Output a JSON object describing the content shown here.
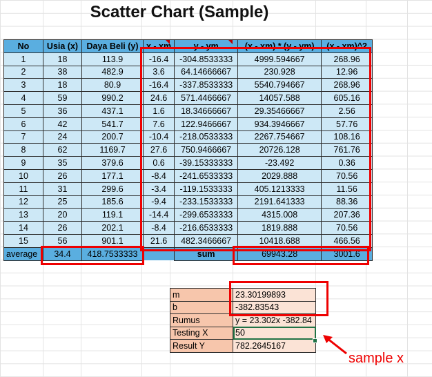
{
  "title": "Scatter Chart (Sample)",
  "headers": [
    "No",
    "Usia (x)",
    "Daya Beli (y)",
    "x - xm",
    "y - ym",
    "(x - xm) * (y - ym)",
    "(x - xm)^2"
  ],
  "rows": [
    [
      "1",
      "18",
      "113.9",
      "-16.4",
      "-304.8533333",
      "4999.594667",
      "268.96"
    ],
    [
      "2",
      "38",
      "482.9",
      "3.6",
      "64.14666667",
      "230.928",
      "12.96"
    ],
    [
      "3",
      "18",
      "80.9",
      "-16.4",
      "-337.8533333",
      "5540.794667",
      "268.96"
    ],
    [
      "4",
      "59",
      "990.2",
      "24.6",
      "571.4466667",
      "14057.588",
      "605.16"
    ],
    [
      "5",
      "36",
      "437.1",
      "1.6",
      "18.34666667",
      "29.35466667",
      "2.56"
    ],
    [
      "6",
      "42",
      "541.7",
      "7.6",
      "122.9466667",
      "934.3946667",
      "57.76"
    ],
    [
      "7",
      "24",
      "200.7",
      "-10.4",
      "-218.0533333",
      "2267.754667",
      "108.16"
    ],
    [
      "8",
      "62",
      "1169.7",
      "27.6",
      "750.9466667",
      "20726.128",
      "761.76"
    ],
    [
      "9",
      "35",
      "379.6",
      "0.6",
      "-39.15333333",
      "-23.492",
      "0.36"
    ],
    [
      "10",
      "26",
      "177.1",
      "-8.4",
      "-241.6533333",
      "2029.888",
      "70.56"
    ],
    [
      "11",
      "31",
      "299.6",
      "-3.4",
      "-119.1533333",
      "405.1213333",
      "11.56"
    ],
    [
      "12",
      "25",
      "185.6",
      "-9.4",
      "-233.1533333",
      "2191.641333",
      "88.36"
    ],
    [
      "13",
      "20",
      "119.1",
      "-14.4",
      "-299.6533333",
      "4315.008",
      "207.36"
    ],
    [
      "14",
      "26",
      "202.1",
      "-8.4",
      "-216.6533333",
      "1819.888",
      "70.56"
    ],
    [
      "15",
      "56",
      "901.1",
      "21.6",
      "482.3466667",
      "10418.688",
      "466.56"
    ]
  ],
  "average": {
    "label": "average",
    "x": "34.4",
    "y": "418.7533333"
  },
  "sum": {
    "label": "sum",
    "xy": "69943.28",
    "x2": "3001.6"
  },
  "calc": [
    {
      "label": "m",
      "value": "23.30199893"
    },
    {
      "label": "b",
      "value": "-382.83543"
    },
    {
      "label": "Rumus",
      "value": "y = 23.302x -382.84"
    },
    {
      "label": "Testing X",
      "value": "50"
    },
    {
      "label": "Result Y",
      "value": "782.2645167"
    }
  ],
  "annotation": "sample x",
  "colors": {
    "header": "#5aaee0",
    "cell": "#cde8f6",
    "calc_label": "#f7c6ac",
    "calc_value": "#fbe3d6",
    "highlight": "#ee0000"
  }
}
